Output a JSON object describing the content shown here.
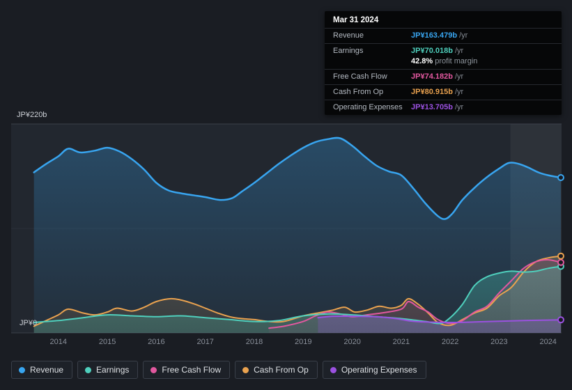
{
  "tooltip": {
    "date": "Mar 31 2024",
    "rows": [
      {
        "label": "Revenue",
        "value": "JP¥163.479b",
        "suffix": " /yr",
        "color": "#38a5f0"
      },
      {
        "label": "Earnings",
        "value": "JP¥70.018b",
        "suffix": " /yr",
        "color": "#4fd0bd",
        "extra_value": "42.8%",
        "extra_label": "profit margin"
      },
      {
        "label": "Free Cash Flow",
        "value": "JP¥74.182b",
        "suffix": " /yr",
        "color": "#e2589f"
      },
      {
        "label": "Cash From Op",
        "value": "JP¥80.915b",
        "suffix": " /yr",
        "color": "#eaa24f"
      },
      {
        "label": "Operating Expenses",
        "value": "JP¥13.705b",
        "suffix": " /yr",
        "color": "#9b51e0"
      }
    ]
  },
  "legend": [
    {
      "label": "Revenue",
      "color": "#38a5f0"
    },
    {
      "label": "Earnings",
      "color": "#4fd0bd"
    },
    {
      "label": "Free Cash Flow",
      "color": "#e2589f"
    },
    {
      "label": "Cash From Op",
      "color": "#eaa24f"
    },
    {
      "label": "Operating Expenses",
      "color": "#9b51e0"
    }
  ],
  "chart_data": {
    "type": "area",
    "unit": "JP¥ billions per year",
    "y_top_label": "JP¥220b",
    "y_bottom_label": "JP¥0",
    "ylim": [
      0,
      220
    ],
    "x_range": [
      2013.49,
      2024.26
    ],
    "x_ticks": [
      2014,
      2015,
      2016,
      2017,
      2018,
      2019,
      2020,
      2021,
      2022,
      2023,
      2024
    ],
    "highlight_x_start": 2023.23,
    "grid": "horizontal",
    "legend_position": "bottom",
    "series": [
      {
        "name": "Revenue",
        "color": "#38a5f0",
        "points": [
          [
            2013.5,
            169
          ],
          [
            2013.75,
            178
          ],
          [
            2014,
            186
          ],
          [
            2014.2,
            194
          ],
          [
            2014.45,
            190
          ],
          [
            2014.75,
            192
          ],
          [
            2015,
            195
          ],
          [
            2015.25,
            191
          ],
          [
            2015.5,
            183
          ],
          [
            2015.75,
            172
          ],
          [
            2016,
            158
          ],
          [
            2016.25,
            150
          ],
          [
            2016.5,
            147
          ],
          [
            2016.75,
            145
          ],
          [
            2017,
            143
          ],
          [
            2017.3,
            140
          ],
          [
            2017.55,
            142
          ],
          [
            2017.75,
            149
          ],
          [
            2018,
            158
          ],
          [
            2018.25,
            168
          ],
          [
            2018.5,
            178
          ],
          [
            2018.75,
            187
          ],
          [
            2019,
            195
          ],
          [
            2019.25,
            201
          ],
          [
            2019.5,
            204
          ],
          [
            2019.75,
            205
          ],
          [
            2020,
            197
          ],
          [
            2020.25,
            186
          ],
          [
            2020.5,
            176
          ],
          [
            2020.75,
            170
          ],
          [
            2021,
            166
          ],
          [
            2021.25,
            152
          ],
          [
            2021.5,
            136
          ],
          [
            2021.75,
            123
          ],
          [
            2021.9,
            120
          ],
          [
            2022.05,
            126
          ],
          [
            2022.25,
            140
          ],
          [
            2022.5,
            153
          ],
          [
            2022.75,
            164
          ],
          [
            2023,
            173
          ],
          [
            2023.2,
            179
          ],
          [
            2023.4,
            178
          ],
          [
            2023.6,
            174
          ],
          [
            2023.8,
            169
          ],
          [
            2024,
            166
          ],
          [
            2024.26,
            163.5
          ]
        ]
      },
      {
        "name": "Earnings",
        "color": "#4fd0bd",
        "points": [
          [
            2013.5,
            11
          ],
          [
            2014,
            13
          ],
          [
            2014.5,
            16
          ],
          [
            2015,
            19
          ],
          [
            2015.5,
            18
          ],
          [
            2016,
            17
          ],
          [
            2016.5,
            18
          ],
          [
            2017,
            16
          ],
          [
            2017.5,
            14
          ],
          [
            2018,
            12
          ],
          [
            2018.5,
            13
          ],
          [
            2019,
            18
          ],
          [
            2019.5,
            20
          ],
          [
            2020,
            19
          ],
          [
            2020.5,
            17
          ],
          [
            2021,
            15
          ],
          [
            2021.5,
            12
          ],
          [
            2021.8,
            10
          ],
          [
            2022,
            16
          ],
          [
            2022.25,
            30
          ],
          [
            2022.5,
            50
          ],
          [
            2022.75,
            59
          ],
          [
            2023,
            63
          ],
          [
            2023.25,
            65
          ],
          [
            2023.5,
            64
          ],
          [
            2023.75,
            65
          ],
          [
            2024,
            68
          ],
          [
            2024.26,
            70
          ]
        ]
      },
      {
        "name": "Free Cash Flow",
        "color": "#e2589f",
        "points": [
          [
            2018.3,
            5
          ],
          [
            2018.6,
            7
          ],
          [
            2019,
            12
          ],
          [
            2019.25,
            18
          ],
          [
            2019.5,
            22
          ],
          [
            2019.75,
            20
          ],
          [
            2020,
            17
          ],
          [
            2020.3,
            19
          ],
          [
            2020.6,
            21
          ],
          [
            2021,
            25
          ],
          [
            2021.15,
            33
          ],
          [
            2021.35,
            27
          ],
          [
            2021.55,
            22
          ],
          [
            2021.75,
            14
          ],
          [
            2022,
            10
          ],
          [
            2022.25,
            13
          ],
          [
            2022.5,
            22
          ],
          [
            2022.75,
            28
          ],
          [
            2023,
            42
          ],
          [
            2023.25,
            55
          ],
          [
            2023.5,
            68
          ],
          [
            2023.75,
            75
          ],
          [
            2024,
            77
          ],
          [
            2024.26,
            74.2
          ]
        ]
      },
      {
        "name": "Cash From Op",
        "color": "#eaa24f",
        "points": [
          [
            2013.5,
            7
          ],
          [
            2013.75,
            13
          ],
          [
            2014,
            19
          ],
          [
            2014.2,
            25
          ],
          [
            2014.5,
            21
          ],
          [
            2014.75,
            19
          ],
          [
            2015,
            22
          ],
          [
            2015.2,
            26
          ],
          [
            2015.5,
            23
          ],
          [
            2015.75,
            27
          ],
          [
            2016,
            33
          ],
          [
            2016.3,
            36
          ],
          [
            2016.55,
            34
          ],
          [
            2016.8,
            30
          ],
          [
            2017,
            26
          ],
          [
            2017.25,
            21
          ],
          [
            2017.5,
            17
          ],
          [
            2017.75,
            15
          ],
          [
            2018,
            14
          ],
          [
            2018.3,
            12
          ],
          [
            2018.6,
            12
          ],
          [
            2019,
            18
          ],
          [
            2019.3,
            21
          ],
          [
            2019.6,
            24
          ],
          [
            2019.85,
            27
          ],
          [
            2020.05,
            22
          ],
          [
            2020.3,
            24
          ],
          [
            2020.55,
            28
          ],
          [
            2020.8,
            26
          ],
          [
            2021,
            29
          ],
          [
            2021.15,
            36
          ],
          [
            2021.35,
            30
          ],
          [
            2021.55,
            21
          ],
          [
            2021.75,
            11
          ],
          [
            2022,
            8
          ],
          [
            2022.25,
            14
          ],
          [
            2022.5,
            21
          ],
          [
            2022.75,
            26
          ],
          [
            2023,
            39
          ],
          [
            2023.25,
            48
          ],
          [
            2023.5,
            64
          ],
          [
            2023.75,
            75
          ],
          [
            2024,
            79
          ],
          [
            2024.26,
            80.9
          ]
        ]
      },
      {
        "name": "Operating Expenses",
        "color": "#9b51e0",
        "points": [
          [
            2019.3,
            16
          ],
          [
            2019.6,
            17.5
          ],
          [
            2020,
            17.5
          ],
          [
            2020.5,
            17
          ],
          [
            2020.9,
            15
          ],
          [
            2021.2,
            12.5
          ],
          [
            2021.5,
            11.5
          ],
          [
            2022,
            11
          ],
          [
            2022.5,
            11.5
          ],
          [
            2023,
            12.3
          ],
          [
            2023.5,
            13
          ],
          [
            2024,
            13.5
          ],
          [
            2024.26,
            13.7
          ]
        ]
      }
    ]
  }
}
